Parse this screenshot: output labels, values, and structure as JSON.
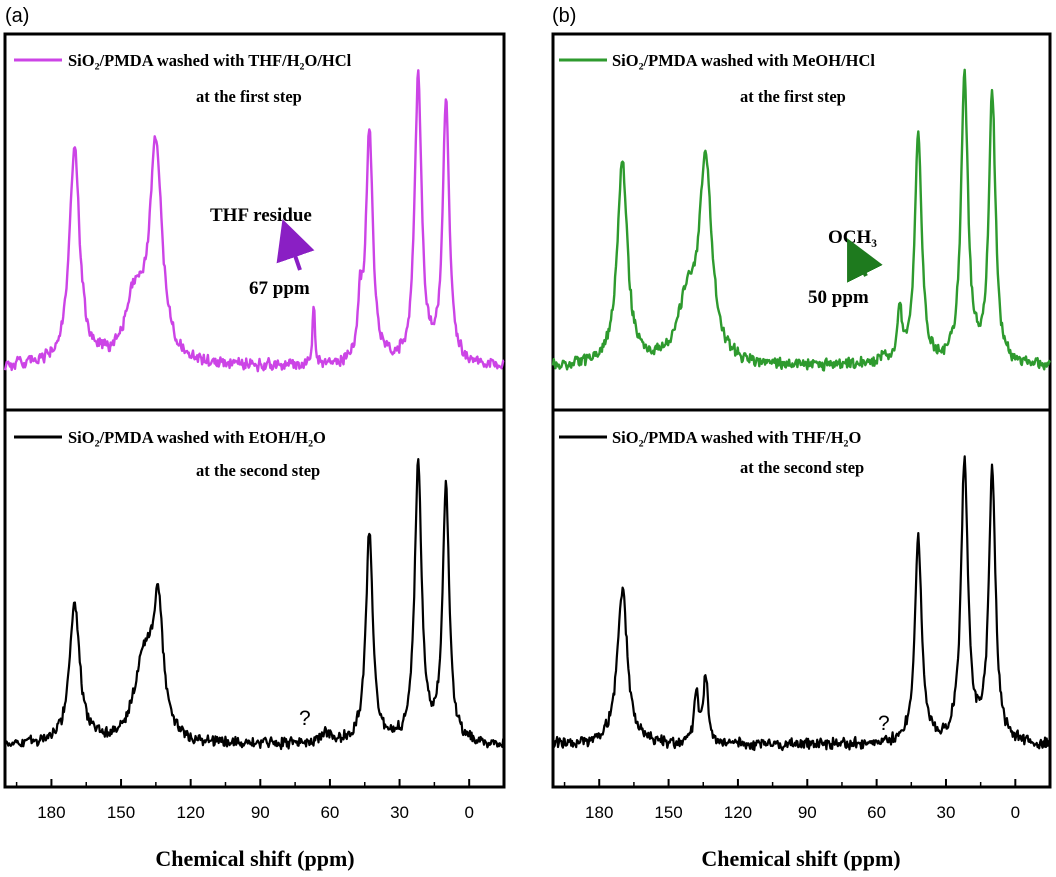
{
  "figure": {
    "panel_labels": [
      "(a)",
      "(b)"
    ],
    "xlabel": "Chemical shift (ppm)",
    "xlim": [
      200,
      -15
    ],
    "xticks": [
      180,
      150,
      120,
      90,
      60,
      30,
      0
    ]
  },
  "chart_data": [
    {
      "type": "line",
      "panel": "(a)",
      "position": "top",
      "series": [
        {
          "name": "SiO2/PMDA washed with THF/H2O/HCl at the first step",
          "name_line1": "SiO₂/PMDA washed with THF/H₂O/HCl",
          "name_line2": "at the first step",
          "color": "#cc44e6"
        }
      ],
      "peaks": [
        {
          "x": 170,
          "height": 0.76,
          "width": 2.6
        },
        {
          "x": 144,
          "height": 0.22,
          "width": 5
        },
        {
          "x": 135,
          "height": 0.75,
          "width": 3.2
        },
        {
          "x": 67,
          "height": 0.22,
          "width": 0.6
        },
        {
          "x": 47,
          "height": 0.18,
          "width": 1.0
        },
        {
          "x": 43,
          "height": 0.82,
          "width": 1.8
        },
        {
          "x": 22,
          "height": 1.0,
          "width": 1.8
        },
        {
          "x": 10,
          "height": 0.92,
          "width": 1.7
        }
      ],
      "annotations": [
        {
          "text": "THF residue",
          "text2": "67 ppm",
          "x": 67,
          "color": "#8a1fc4"
        }
      ]
    },
    {
      "type": "line",
      "panel": "(a)",
      "position": "bottom",
      "series": [
        {
          "name": "SiO2/PMDA washed with EtOH/H2O at the second step",
          "name_line1": "SiO₂/PMDA washed with EtOH/H₂O",
          "name_line2": "at the second step",
          "color": "#000000"
        }
      ],
      "peaks": [
        {
          "x": 170,
          "height": 0.5,
          "width": 2.6
        },
        {
          "x": 140,
          "height": 0.3,
          "width": 5
        },
        {
          "x": 134,
          "height": 0.45,
          "width": 2.5
        },
        {
          "x": 62,
          "height": 0.03,
          "width": 3
        },
        {
          "x": 43,
          "height": 0.76,
          "width": 1.8
        },
        {
          "x": 22,
          "height": 1.0,
          "width": 1.8
        },
        {
          "x": 10,
          "height": 0.91,
          "width": 1.7
        }
      ],
      "annotations": [
        {
          "text": "?",
          "x": 68,
          "color": "#000000"
        }
      ]
    },
    {
      "type": "line",
      "panel": "(b)",
      "position": "top",
      "series": [
        {
          "name": "SiO2/PMDA washed with MeOH/HCl at the first step",
          "name_line1": "SiO₂/PMDA washed with MeOH/HCl",
          "name_line2": "at the first step",
          "color": "#2e9a2e"
        }
      ],
      "peaks": [
        {
          "x": 170,
          "height": 0.72,
          "width": 2.6
        },
        {
          "x": 142,
          "height": 0.2,
          "width": 5
        },
        {
          "x": 134,
          "height": 0.7,
          "width": 3.2
        },
        {
          "x": 57,
          "height": 0.04,
          "width": 1.5
        },
        {
          "x": 50,
          "height": 0.18,
          "width": 1.2
        },
        {
          "x": 42,
          "height": 0.8,
          "width": 1.8
        },
        {
          "x": 22,
          "height": 1.0,
          "width": 1.8
        },
        {
          "x": 10,
          "height": 0.95,
          "width": 1.7
        }
      ],
      "annotations": [
        {
          "text": "OCH₃",
          "text2": "50 ppm",
          "x": 50,
          "color": "#1e7a1e"
        }
      ]
    },
    {
      "type": "line",
      "panel": "(b)",
      "position": "bottom",
      "series": [
        {
          "name": "SiO2/PMDA washed with THF/H2O at the second step",
          "name_line1": "SiO₂/PMDA washed with THF/H₂O",
          "name_line2": "at the second step",
          "color": "#000000"
        }
      ],
      "peaks": [
        {
          "x": 170,
          "height": 0.56,
          "width": 2.6
        },
        {
          "x": 138,
          "height": 0.18,
          "width": 1.2
        },
        {
          "x": 134,
          "height": 0.24,
          "width": 1.2
        },
        {
          "x": 42,
          "height": 0.73,
          "width": 1.8
        },
        {
          "x": 22,
          "height": 1.0,
          "width": 1.8
        },
        {
          "x": 10,
          "height": 0.97,
          "width": 1.7
        }
      ],
      "annotations": [
        {
          "text": "?",
          "x": 50,
          "color": "#000000"
        }
      ]
    }
  ]
}
